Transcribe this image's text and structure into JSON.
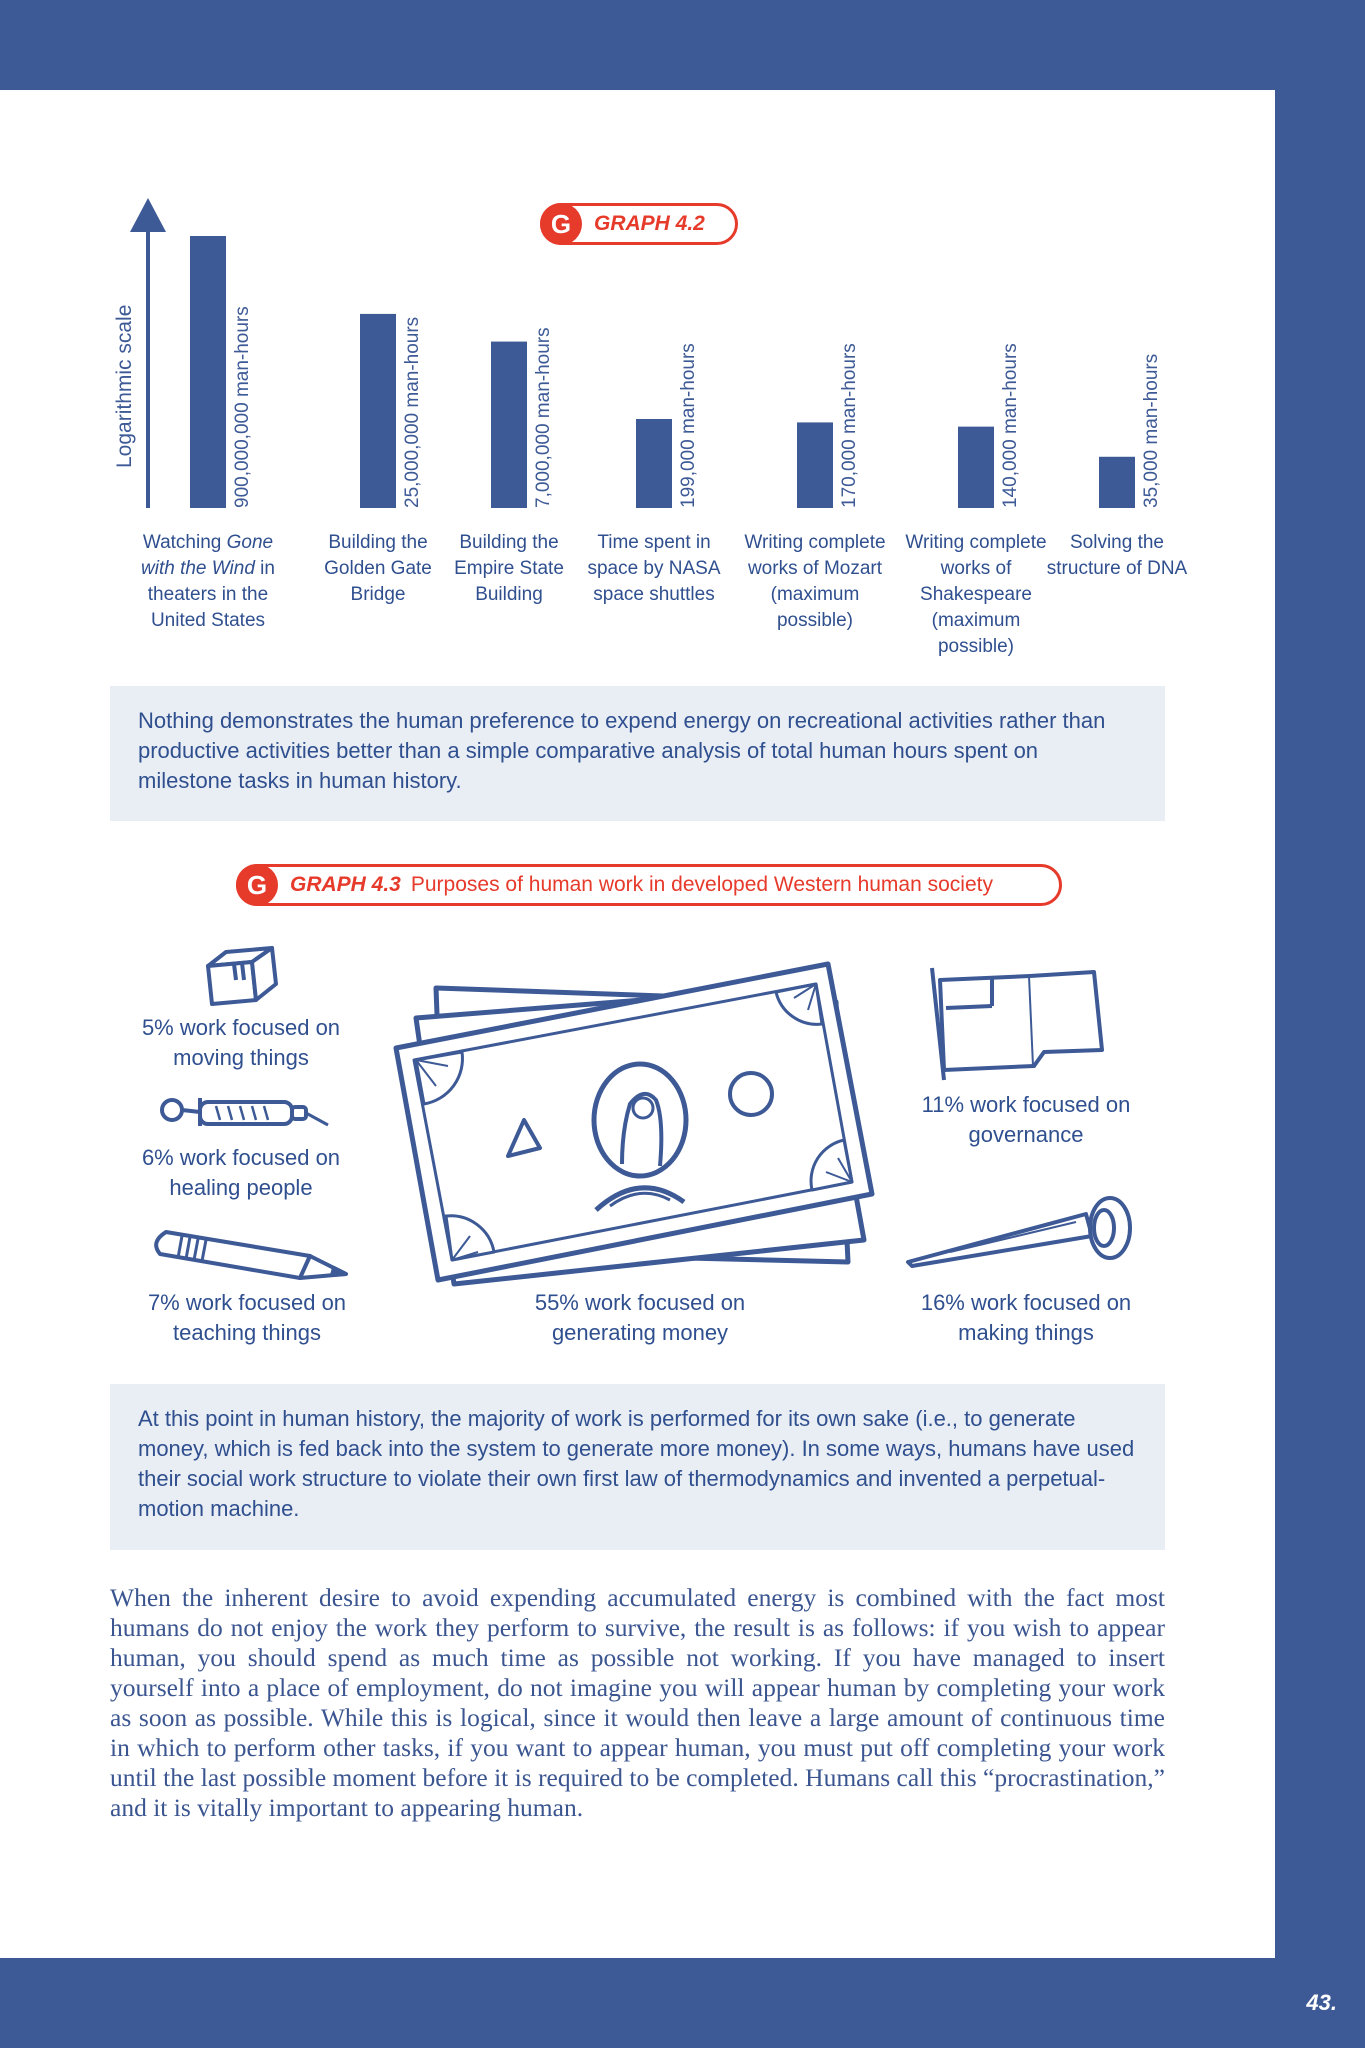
{
  "page_number": "43.",
  "graph42": {
    "badge": "G",
    "label": "GRAPH 4.2",
    "axis_label": "Logarithmic scale"
  },
  "chart_data": {
    "type": "bar",
    "title": "GRAPH 4.2",
    "ylabel": "Logarithmic scale",
    "yscale": "log",
    "categories": [
      "Watching Gone with the Wind in theaters in the United States",
      "Building the Golden Gate Bridge",
      "Building the Empire State Building",
      "Time spent in space by NASA space shuttles",
      "Writing complete works of Mozart (maximum possible)",
      "Writing complete works of Shakespeare (maximum possible)",
      "Solving the structure of DNA"
    ],
    "values": [
      900000000,
      25000000,
      7000000,
      199000,
      170000,
      140000,
      35000
    ],
    "value_labels": [
      "900,000,000 man-hours",
      "25,000,000 man-hours",
      "7,000,000 man-hours",
      "199,000 man-hours",
      "170,000 man-hours",
      "140,000 man-hours",
      "35,000 man-hours"
    ],
    "bar_color": "#3d5a96"
  },
  "category_labels": [
    {
      "pre": "Watching ",
      "em": "Gone with the Wind",
      "post": " in theaters in the United States"
    },
    {
      "pre": "Building the Golden Gate Bridge",
      "em": "",
      "post": ""
    },
    {
      "pre": "Building the Empire State Building",
      "em": "",
      "post": ""
    },
    {
      "pre": "Time spent in space by NASA space shuttles",
      "em": "",
      "post": ""
    },
    {
      "pre": "Writing complete works of Mozart (maximum possible)",
      "em": "",
      "post": ""
    },
    {
      "pre": "Writing complete works of Shakespeare (maximum possible)",
      "em": "",
      "post": ""
    },
    {
      "pre": "Solving the structure of DNA",
      "em": "",
      "post": ""
    }
  ],
  "note1": "Nothing demonstrates the human preference to expend energy on recreational activities rather than productive activities better than a simple comparative analysis of total human hours spent on milestone tasks in human history.",
  "graph43": {
    "badge": "G",
    "label": "GRAPH 4.3",
    "title": "Purposes of human work in developed Western human society",
    "items": {
      "moving": "5% work focused on moving things",
      "healing": "6% work focused on healing people",
      "teaching": "7% work focused on teaching things",
      "money": "55% work focused on generating money",
      "governance": "11% work focused on governance",
      "making": "16% work focused on making things"
    },
    "icons": {
      "moving": "box-icon",
      "healing": "syringe-icon",
      "teaching": "pencil-icon",
      "money": "money-stack-icon",
      "governance": "flag-icon",
      "making": "nail-icon"
    }
  },
  "note2": "At this point in human history, the majority of work is performed for its own sake (i.e., to generate money, which is fed back into the system to generate more money). In some ways, humans have used their social work structure to violate their own first law of thermodynamics and invented a perpetual-motion machine.",
  "body": "When the inherent desire to avoid expending accumulated energy is combined with the fact most humans do not enjoy the work they perform to survive, the result is as follows: if you wish to appear human, you should spend as much time as possible not working. If you have managed to insert yourself into a place of employment, do not imagine you will appear human by completing your work as soon as possible. While this is logical, since it would then leave a large amount of continuous time in which to perform other tasks, if you want to appear human, you must put off completing your work until the last possible moment before it is required to be completed. Humans call this “procrastination,” and it is vitally important to appearing human."
}
